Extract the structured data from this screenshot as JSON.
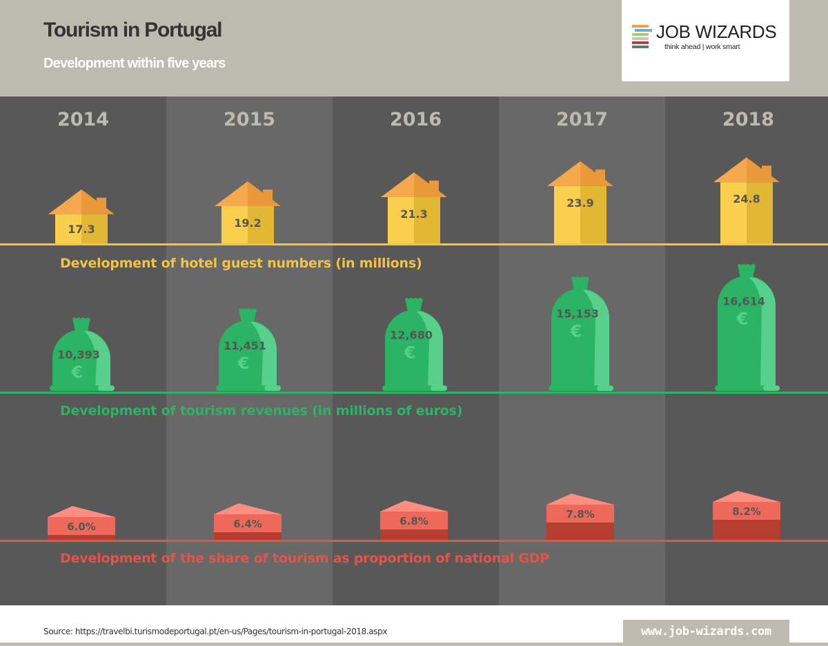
{
  "header": {
    "title": "Tourism in Portugal",
    "subtitle": "Development within five years"
  },
  "logo": {
    "name": "JOB WIZARDS",
    "tagline": "think ahead | work smart",
    "icon": "stacked-books-icon",
    "bar_colors": [
      "#f0a23c",
      "#6aaed6",
      "#a6cf5f",
      "#c8c4b6",
      "#b5443e",
      "#5c7682"
    ]
  },
  "colors": {
    "header_bg": "#bdbbb0",
    "col_dark": "#585858",
    "col_light": "#686868",
    "hotel": "#f6c244",
    "hotel_roof": "#f4a64a",
    "revenue": "#2bb463",
    "revenue_light": "#56d08a",
    "gdp": "#e65447",
    "gdp_top": "#ff8e80",
    "gdp_mid": "#ee695a",
    "gdp_dark": "#b53e31",
    "year_text": "#bdbbb0"
  },
  "chart_data": {
    "type": "bar",
    "title": "Tourism in Portugal",
    "subtitle": "Development within five years",
    "categories": [
      "2014",
      "2015",
      "2016",
      "2017",
      "2018"
    ],
    "series": [
      {
        "name": "Development of hotel guest numbers (in millions)",
        "key": "hotel",
        "icon": "house-icon",
        "values": [
          17.3,
          19.2,
          21.3,
          23.9,
          24.8
        ],
        "labels": [
          "17.3",
          "19.2",
          "21.3",
          "23.9",
          "24.8"
        ]
      },
      {
        "name": "Development of tourism revenues (in millions of euros)",
        "key": "revenue",
        "icon": "money-bag-icon",
        "symbol": "€",
        "values": [
          10393,
          11451,
          12680,
          15153,
          16614
        ],
        "labels": [
          "10,393",
          "11,451",
          "12,680",
          "15,153",
          "16,614"
        ]
      },
      {
        "name": "Development of the share of tourism as proportion of national GDP",
        "key": "gdp",
        "icon": "gdp-block-icon",
        "values": [
          6.0,
          6.4,
          6.8,
          7.8,
          8.2
        ],
        "labels": [
          "6.0%",
          "6.4%",
          "6.8%",
          "7.8%",
          "8.2%"
        ]
      }
    ],
    "xlabel": "",
    "ylabel": "",
    "legend": "none",
    "grid": false
  },
  "footer": {
    "source": "Source: https://travelbi.turismodeportugal.pt/en-us/Pages/tourism-in-portugal-2018.aspx",
    "website": "www.job-wizards.com"
  }
}
